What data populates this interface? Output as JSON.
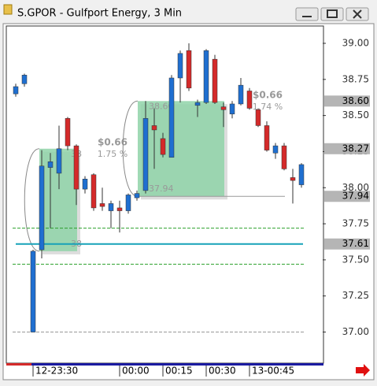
{
  "chart_data": {
    "type": "candlestick",
    "title": "S.GPOR - Gulfport Energy, 3 Min",
    "categories": [
      null,
      null,
      "12-23:30",
      null,
      null,
      null,
      null,
      null,
      null,
      null,
      null,
      null,
      "00:00",
      null,
      null,
      null,
      null,
      "00:15",
      null,
      null,
      null,
      null,
      "00:30",
      null,
      null,
      null,
      null,
      "13-00:45",
      null,
      null,
      null,
      null,
      null,
      null
    ],
    "open": [
      38.65,
      38.72,
      37.0,
      37.57,
      38.14,
      38.1,
      38.48,
      38.29,
      37.99,
      38.09,
      37.89,
      37.84,
      37.86,
      37.84,
      37.93,
      37.98,
      38.43,
      38.34,
      38.21,
      38.76,
      38.95,
      38.57,
      38.59,
      38.89,
      38.56,
      38.51,
      38.58,
      38.67,
      38.54,
      38.43,
      38.24,
      38.29,
      38.07,
      38.02
    ],
    "high": [
      38.72,
      38.79,
      37.57,
      38.26,
      38.24,
      38.43,
      38.49,
      38.3,
      38.08,
      38.1,
      38.0,
      37.91,
      37.91,
      37.96,
      37.98,
      38.6,
      38.55,
      38.38,
      38.78,
      38.95,
      39.0,
      38.61,
      38.96,
      38.92,
      38.59,
      38.6,
      38.76,
      38.69,
      38.55,
      38.46,
      38.31,
      38.31,
      38.13,
      38.17
    ],
    "low": [
      38.63,
      38.7,
      37.0,
      37.51,
      37.72,
      37.99,
      38.26,
      37.88,
      37.96,
      37.84,
      37.84,
      37.72,
      37.69,
      37.82,
      37.91,
      37.96,
      38.13,
      38.21,
      38.21,
      38.59,
      38.67,
      38.49,
      38.58,
      38.58,
      38.42,
      38.48,
      38.57,
      38.54,
      38.42,
      38.25,
      38.2,
      38.12,
      37.89,
      38.0
    ],
    "close": [
      38.7,
      38.78,
      37.56,
      38.15,
      38.18,
      38.27,
      38.29,
      37.99,
      38.06,
      37.86,
      37.87,
      37.89,
      37.84,
      37.95,
      37.96,
      38.48,
      38.4,
      38.23,
      38.76,
      38.93,
      38.69,
      38.59,
      38.95,
      38.59,
      38.54,
      38.58,
      38.71,
      38.55,
      38.43,
      38.26,
      38.29,
      38.13,
      38.05,
      38.16
    ],
    "up_color": "#1f6fd0",
    "down_color": "#d42a2a",
    "ylim": [
      36.79,
      39.12
    ],
    "yticks": [
      {
        "value": 37.0,
        "label": "37.00"
      },
      {
        "value": 37.25,
        "label": "37.25"
      },
      {
        "value": 37.5,
        "label": "37.50"
      },
      {
        "value": 37.75,
        "label": "37.75"
      },
      {
        "value": 38.0,
        "label": "38.00"
      },
      {
        "value": 38.25,
        "label": "38.25"
      },
      {
        "value": 38.5,
        "label": "38.50"
      },
      {
        "value": 38.75,
        "label": "38.75"
      },
      {
        "value": 39.0,
        "label": "39.00"
      }
    ],
    "price_labels": [
      {
        "value": 38.6,
        "label": "38.60"
      },
      {
        "value": 38.27,
        "label": "38.27"
      },
      {
        "value": 37.94,
        "label": "37.94"
      },
      {
        "value": 37.61,
        "label": "37.61"
      }
    ],
    "levels": [
      {
        "value": 37.72,
        "color": "#2ca02c",
        "style": "dashed"
      },
      {
        "value": 37.61,
        "color": "#17a2b8",
        "style": "solid"
      },
      {
        "value": 37.47,
        "color": "#2ca02c",
        "style": "dashed"
      },
      {
        "value": 37.0,
        "color": "#999999",
        "style": "dashed"
      },
      {
        "value": 37.94,
        "color": "#999999",
        "style": "solid"
      }
    ],
    "zones": [
      {
        "low": 37.56,
        "high": 38.27,
        "texts": [
          "$0.66",
          "1.75 %",
          "38",
          "38"
        ]
      },
      {
        "low": 37.94,
        "high": 38.6,
        "texts": [
          "$0.66",
          "1.74 %",
          "38.60",
          "37.94"
        ]
      }
    ]
  }
}
